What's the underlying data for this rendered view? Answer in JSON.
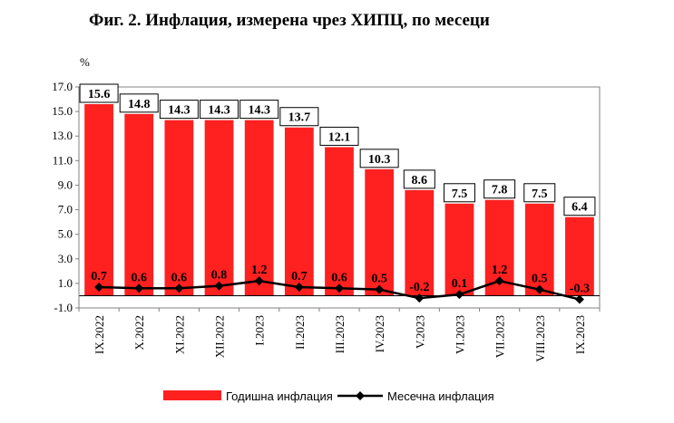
{
  "chart_data": {
    "type": "bar",
    "title": "Фиг. 2. Инфлация, измерена чрез ХИПЦ, по месеци",
    "ylabel": "%",
    "xlabel": "",
    "ylim": [
      -1.0,
      17.0
    ],
    "yticks": [
      "-1.0",
      "1.0",
      "3.0",
      "5.0",
      "7.0",
      "9.0",
      "11.0",
      "13.0",
      "15.0",
      "17.0"
    ],
    "grid": false,
    "legend_position": "bottom",
    "categories": [
      "IX.2022",
      "X.2022",
      "XI.2022",
      "XII.2022",
      "I.2023",
      "II.2023",
      "III.2023",
      "IV.2023",
      "V.2023",
      "VI.2023",
      "VII.2023",
      "VIII.2023",
      "IX.2023"
    ],
    "series": [
      {
        "name": "Годишна инфлация",
        "type": "bar",
        "color": "#ff2020",
        "values": [
          15.6,
          14.8,
          14.3,
          14.3,
          14.3,
          13.7,
          12.1,
          10.3,
          8.6,
          7.5,
          7.8,
          7.5,
          6.4
        ],
        "labels": [
          "15.6",
          "14.8",
          "14.3",
          "14.3",
          "14.3",
          "13.7",
          "12.1",
          "10.3",
          "8.6",
          "7.5",
          "7.8",
          "7.5",
          "6.4"
        ]
      },
      {
        "name": "Месечна инфлация",
        "type": "line",
        "color": "#000000",
        "values": [
          0.7,
          0.6,
          0.6,
          0.8,
          1.2,
          0.7,
          0.6,
          0.5,
          -0.2,
          0.1,
          1.2,
          0.5,
          -0.3
        ],
        "labels": [
          "0.7",
          "0.6",
          "0.6",
          "0.8",
          "1.2",
          "0.7",
          "0.6",
          "0.5",
          "-0.2",
          "0.1",
          "1.2",
          "0.5",
          "-0.3"
        ]
      }
    ]
  }
}
